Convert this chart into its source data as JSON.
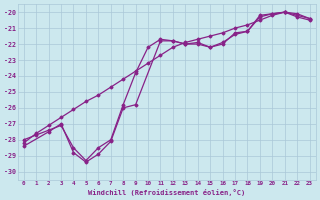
{
  "xlabel": "Windchill (Refroidissement éolien,°C)",
  "bg_color": "#cce8ee",
  "grid_color": "#aac8d8",
  "line_color": "#882288",
  "xlim": [
    -0.5,
    23.5
  ],
  "ylim": [
    -30.5,
    -19.5
  ],
  "xticks": [
    0,
    1,
    2,
    3,
    4,
    5,
    6,
    7,
    8,
    9,
    10,
    11,
    12,
    13,
    14,
    15,
    16,
    17,
    18,
    19,
    20,
    21,
    22,
    23
  ],
  "yticks": [
    -20,
    -21,
    -22,
    -23,
    -24,
    -25,
    -26,
    -27,
    -28,
    -29,
    -30
  ],
  "line1_x": [
    0,
    1,
    2,
    3,
    4,
    5,
    6,
    7,
    8,
    9,
    10,
    11,
    12,
    13,
    14,
    15,
    16,
    17,
    18,
    19,
    20,
    21,
    22,
    23
  ],
  "line1_y": [
    -28.0,
    -27.7,
    -27.4,
    -27.1,
    -28.5,
    -29.3,
    -28.5,
    -28.0,
    -25.8,
    -23.8,
    -22.2,
    -21.7,
    -21.8,
    -22.0,
    -21.9,
    -22.2,
    -22.0,
    -21.3,
    -21.2,
    -20.2,
    -20.1,
    -20.0,
    -20.2,
    -20.4
  ],
  "line2_x": [
    0,
    1,
    2,
    3,
    4,
    5,
    6,
    7,
    8,
    9,
    10,
    11,
    12,
    13,
    14,
    15,
    16,
    17,
    18,
    19,
    20,
    21,
    22,
    23
  ],
  "line2_y": [
    -28.2,
    -27.6,
    -27.1,
    -26.6,
    -26.1,
    -25.6,
    -25.2,
    -24.7,
    -24.2,
    -23.7,
    -23.2,
    -22.7,
    -22.2,
    -21.9,
    -21.7,
    -21.5,
    -21.3,
    -21.0,
    -20.8,
    -20.5,
    -20.2,
    -20.0,
    -20.3,
    -20.5
  ],
  "line3_x": [
    0,
    2,
    3,
    4,
    5,
    6,
    7,
    8,
    9,
    11,
    12,
    13,
    14,
    15,
    16,
    17,
    18,
    19,
    20,
    21,
    22,
    23
  ],
  "line3_y": [
    -28.4,
    -27.5,
    -27.0,
    -28.8,
    -29.4,
    -28.9,
    -28.1,
    -26.0,
    -25.8,
    -21.8,
    -21.8,
    -22.0,
    -22.0,
    -22.2,
    -21.9,
    -21.4,
    -21.2,
    -20.3,
    -20.1,
    -20.0,
    -20.1,
    -20.4
  ]
}
